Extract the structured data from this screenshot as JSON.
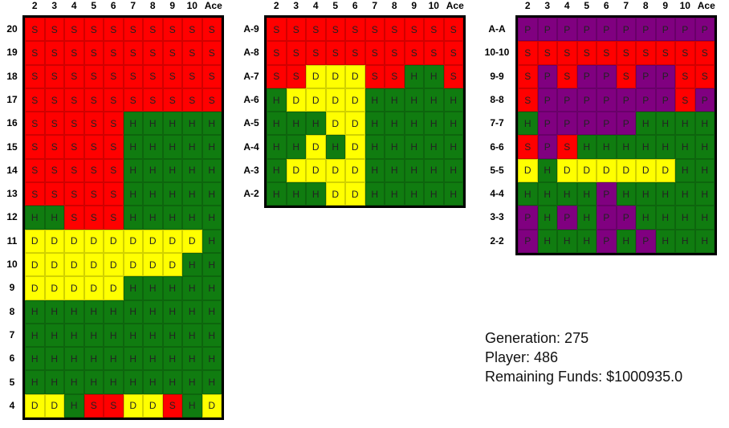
{
  "dealer_headers": [
    "2",
    "3",
    "4",
    "5",
    "6",
    "7",
    "8",
    "9",
    "10",
    "Ace"
  ],
  "hard": {
    "rows": [
      "20",
      "19",
      "18",
      "17",
      "16",
      "15",
      "14",
      "13",
      "12",
      "11",
      "10",
      "9",
      "8",
      "7",
      "6",
      "5",
      "4"
    ],
    "cells": [
      [
        "S",
        "S",
        "S",
        "S",
        "S",
        "S",
        "S",
        "S",
        "S",
        "S"
      ],
      [
        "S",
        "S",
        "S",
        "S",
        "S",
        "S",
        "S",
        "S",
        "S",
        "S"
      ],
      [
        "S",
        "S",
        "S",
        "S",
        "S",
        "S",
        "S",
        "S",
        "S",
        "S"
      ],
      [
        "S",
        "S",
        "S",
        "S",
        "S",
        "S",
        "S",
        "S",
        "S",
        "S"
      ],
      [
        "S",
        "S",
        "S",
        "S",
        "S",
        "H",
        "H",
        "H",
        "H",
        "H"
      ],
      [
        "S",
        "S",
        "S",
        "S",
        "S",
        "H",
        "H",
        "H",
        "H",
        "H"
      ],
      [
        "S",
        "S",
        "S",
        "S",
        "S",
        "H",
        "H",
        "H",
        "H",
        "H"
      ],
      [
        "S",
        "S",
        "S",
        "S",
        "S",
        "H",
        "H",
        "H",
        "H",
        "H"
      ],
      [
        "H",
        "H",
        "S",
        "S",
        "S",
        "H",
        "H",
        "H",
        "H",
        "H"
      ],
      [
        "D",
        "D",
        "D",
        "D",
        "D",
        "D",
        "D",
        "D",
        "D",
        "H"
      ],
      [
        "D",
        "D",
        "D",
        "D",
        "D",
        "D",
        "D",
        "D",
        "H",
        "H"
      ],
      [
        "D",
        "D",
        "D",
        "D",
        "D",
        "H",
        "H",
        "H",
        "H",
        "H"
      ],
      [
        "H",
        "H",
        "H",
        "H",
        "H",
        "H",
        "H",
        "H",
        "H",
        "H"
      ],
      [
        "H",
        "H",
        "H",
        "H",
        "H",
        "H",
        "H",
        "H",
        "H",
        "H"
      ],
      [
        "H",
        "H",
        "H",
        "H",
        "H",
        "H",
        "H",
        "H",
        "H",
        "H"
      ],
      [
        "H",
        "H",
        "H",
        "H",
        "H",
        "H",
        "H",
        "H",
        "H",
        "H"
      ],
      [
        "D",
        "D",
        "H",
        "S",
        "S",
        "D",
        "D",
        "S",
        "H",
        "D"
      ]
    ]
  },
  "soft": {
    "rows": [
      "A-9",
      "A-8",
      "A-7",
      "A-6",
      "A-5",
      "A-4",
      "A-3",
      "A-2"
    ],
    "cells": [
      [
        "S",
        "S",
        "S",
        "S",
        "S",
        "S",
        "S",
        "S",
        "S",
        "S"
      ],
      [
        "S",
        "S",
        "S",
        "S",
        "S",
        "S",
        "S",
        "S",
        "S",
        "S"
      ],
      [
        "S",
        "S",
        "D",
        "D",
        "D",
        "S",
        "S",
        "H",
        "H",
        "S"
      ],
      [
        "H",
        "D",
        "D",
        "D",
        "D",
        "H",
        "H",
        "H",
        "H",
        "H"
      ],
      [
        "H",
        "H",
        "H",
        "D",
        "D",
        "H",
        "H",
        "H",
        "H",
        "H"
      ],
      [
        "H",
        "H",
        "D",
        "H",
        "D",
        "H",
        "H",
        "H",
        "H",
        "H"
      ],
      [
        "H",
        "D",
        "D",
        "D",
        "D",
        "H",
        "H",
        "H",
        "H",
        "H"
      ],
      [
        "H",
        "H",
        "H",
        "D",
        "D",
        "H",
        "H",
        "H",
        "H",
        "H"
      ]
    ]
  },
  "pairs": {
    "rows": [
      "A-A",
      "10-10",
      "9-9",
      "8-8",
      "7-7",
      "6-6",
      "5-5",
      "4-4",
      "3-3",
      "2-2"
    ],
    "cells": [
      [
        "P",
        "P",
        "P",
        "P",
        "P",
        "P",
        "P",
        "P",
        "P",
        "P"
      ],
      [
        "S",
        "S",
        "S",
        "S",
        "S",
        "S",
        "S",
        "S",
        "S",
        "S"
      ],
      [
        "S",
        "P",
        "S",
        "P",
        "P",
        "S",
        "P",
        "P",
        "S",
        "S"
      ],
      [
        "S",
        "P",
        "P",
        "P",
        "P",
        "P",
        "P",
        "P",
        "S",
        "P"
      ],
      [
        "H",
        "P",
        "P",
        "P",
        "P",
        "P",
        "H",
        "H",
        "H",
        "H"
      ],
      [
        "S",
        "P",
        "S",
        "H",
        "H",
        "H",
        "H",
        "H",
        "H",
        "H"
      ],
      [
        "D",
        "H",
        "D",
        "D",
        "D",
        "D",
        "D",
        "D",
        "H",
        "H"
      ],
      [
        "H",
        "H",
        "H",
        "H",
        "P",
        "H",
        "H",
        "H",
        "H",
        "H"
      ],
      [
        "P",
        "H",
        "P",
        "H",
        "P",
        "P",
        "H",
        "H",
        "H",
        "H"
      ],
      [
        "P",
        "H",
        "H",
        "H",
        "P",
        "H",
        "P",
        "H",
        "H",
        "H"
      ]
    ]
  },
  "info": {
    "generation": "Generation: 275",
    "player": "Player: 486",
    "funds": "Remaining Funds: $1000935.0"
  },
  "colors": {
    "S": "#ff0000",
    "H": "#107c10",
    "D": "#ffff00",
    "P": "#800080"
  }
}
